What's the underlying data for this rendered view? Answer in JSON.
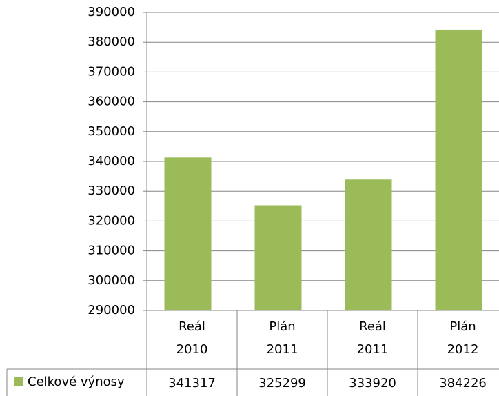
{
  "chart_data": {
    "type": "bar",
    "categories": [
      "Reál 2010",
      "Plán 2011",
      "Reál 2011",
      "Plán 2012"
    ],
    "series": [
      {
        "name": "Celkové výnosy",
        "color": "#9bbb59",
        "values": [
          341317,
          325299,
          333920,
          384226
        ]
      }
    ],
    "ylim": [
      290000,
      390000
    ],
    "yticks": [
      290000,
      300000,
      310000,
      320000,
      330000,
      340000,
      350000,
      360000,
      370000,
      380000,
      390000
    ],
    "grid": true,
    "legend": "bottom-left"
  }
}
